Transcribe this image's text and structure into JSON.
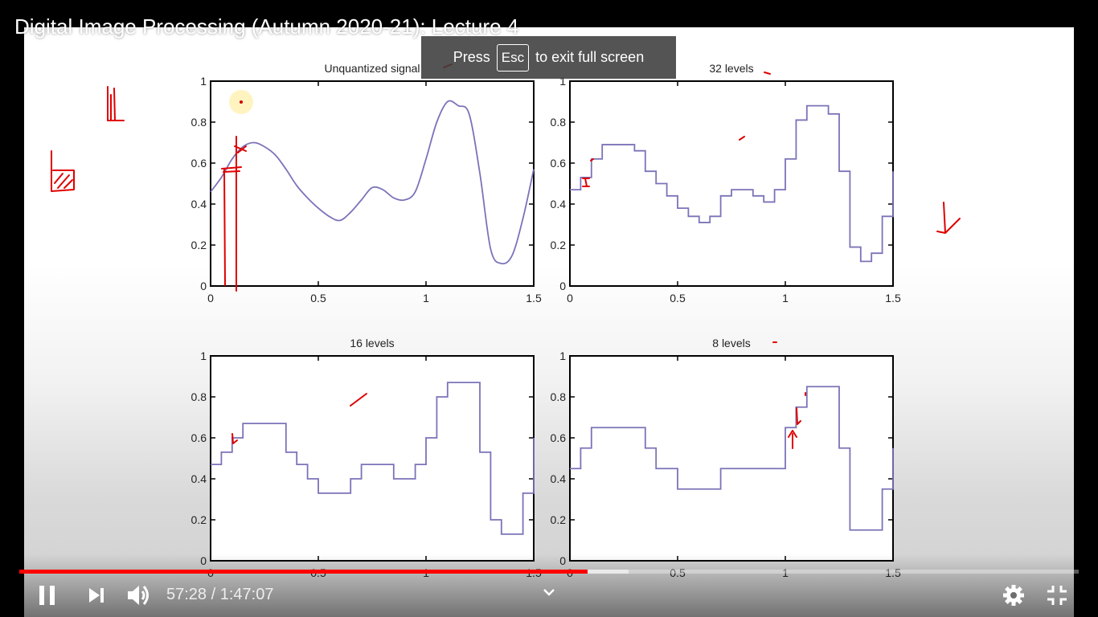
{
  "video": {
    "title": "Digital Image Processing (Autumn 2020-21): Lecture 4",
    "current_time": "57:28",
    "duration": "1:47:07",
    "time_separator": "/",
    "progress_played": 0.5365,
    "progress_buffered": 0.575
  },
  "fullscreen_toast": {
    "press": "Press",
    "key": "Esc",
    "message": "to exit full screen"
  },
  "controls": {
    "play_state": "playing",
    "icons": [
      "pause-icon",
      "next-icon",
      "volume-icon",
      "chevron-down-icon",
      "settings-icon",
      "exit-fullscreen-icon"
    ],
    "accent": "#ff0000"
  },
  "slide": {
    "plots": [
      {
        "title": "Unquantized signal",
        "type": "line"
      },
      {
        "title": "32 levels",
        "type": "line",
        "levels": 32
      },
      {
        "title": "16 levels",
        "type": "line",
        "levels": 16
      },
      {
        "title": "8 levels",
        "type": "line",
        "levels": 8
      }
    ],
    "x_ticks": [
      "0",
      "0.5",
      "1",
      "1.5"
    ],
    "y_ticks": [
      "0",
      "0.2",
      "0.4",
      "0.6",
      "0.8",
      "1"
    ],
    "xlim": [
      0,
      1.5
    ],
    "ylim": [
      0,
      1
    ],
    "line_color": "#7b73b8",
    "annotation_color": "#e00000"
  },
  "chart_data": [
    {
      "type": "line",
      "title": "Unquantized signal",
      "x": [
        0,
        0.05,
        0.1,
        0.15,
        0.2,
        0.25,
        0.3,
        0.35,
        0.4,
        0.45,
        0.5,
        0.55,
        0.6,
        0.65,
        0.7,
        0.75,
        0.8,
        0.85,
        0.9,
        0.95,
        1.0,
        1.05,
        1.1,
        1.15,
        1.2,
        1.25,
        1.3,
        1.35,
        1.4,
        1.45,
        1.5
      ],
      "y": [
        0.46,
        0.53,
        0.62,
        0.68,
        0.7,
        0.68,
        0.64,
        0.57,
        0.49,
        0.43,
        0.38,
        0.34,
        0.32,
        0.36,
        0.42,
        0.48,
        0.47,
        0.43,
        0.42,
        0.46,
        0.62,
        0.8,
        0.9,
        0.88,
        0.84,
        0.55,
        0.18,
        0.11,
        0.15,
        0.33,
        0.57
      ],
      "xlim": [
        0,
        1.5
      ],
      "ylim": [
        0,
        1
      ]
    },
    {
      "type": "line",
      "title": "32 levels",
      "x": [
        0,
        0.05,
        0.1,
        0.15,
        0.2,
        0.25,
        0.3,
        0.35,
        0.4,
        0.45,
        0.5,
        0.55,
        0.6,
        0.65,
        0.7,
        0.75,
        0.8,
        0.85,
        0.9,
        0.95,
        1.0,
        1.05,
        1.1,
        1.15,
        1.2,
        1.25,
        1.3,
        1.35,
        1.4,
        1.45,
        1.5
      ],
      "y": [
        0.47,
        0.53,
        0.62,
        0.69,
        0.69,
        0.69,
        0.66,
        0.56,
        0.5,
        0.44,
        0.38,
        0.34,
        0.31,
        0.34,
        0.44,
        0.47,
        0.47,
        0.44,
        0.41,
        0.47,
        0.62,
        0.81,
        0.88,
        0.88,
        0.84,
        0.56,
        0.19,
        0.12,
        0.16,
        0.34,
        0.56
      ],
      "xlim": [
        0,
        1.5
      ],
      "ylim": [
        0,
        1
      ]
    },
    {
      "type": "line",
      "title": "16 levels",
      "x": [
        0,
        0.05,
        0.1,
        0.15,
        0.2,
        0.25,
        0.3,
        0.35,
        0.4,
        0.45,
        0.5,
        0.55,
        0.6,
        0.65,
        0.7,
        0.75,
        0.8,
        0.85,
        0.9,
        0.95,
        1.0,
        1.05,
        1.1,
        1.15,
        1.2,
        1.25,
        1.3,
        1.35,
        1.4,
        1.45,
        1.5
      ],
      "y": [
        0.47,
        0.53,
        0.6,
        0.67,
        0.67,
        0.67,
        0.67,
        0.53,
        0.47,
        0.4,
        0.33,
        0.33,
        0.33,
        0.4,
        0.47,
        0.47,
        0.47,
        0.4,
        0.4,
        0.47,
        0.6,
        0.8,
        0.87,
        0.87,
        0.87,
        0.53,
        0.2,
        0.13,
        0.13,
        0.33,
        0.6
      ],
      "xlim": [
        0,
        1.5
      ],
      "ylim": [
        0,
        1
      ]
    },
    {
      "type": "line",
      "title": "8 levels",
      "x": [
        0,
        0.05,
        0.1,
        0.15,
        0.2,
        0.25,
        0.3,
        0.35,
        0.4,
        0.45,
        0.5,
        0.55,
        0.6,
        0.65,
        0.7,
        0.75,
        0.8,
        0.85,
        0.9,
        0.95,
        1.0,
        1.05,
        1.1,
        1.15,
        1.2,
        1.25,
        1.3,
        1.35,
        1.4,
        1.45,
        1.5
      ],
      "y": [
        0.45,
        0.55,
        0.65,
        0.65,
        0.65,
        0.65,
        0.65,
        0.55,
        0.45,
        0.45,
        0.35,
        0.35,
        0.35,
        0.35,
        0.45,
        0.45,
        0.45,
        0.45,
        0.45,
        0.45,
        0.65,
        0.75,
        0.85,
        0.85,
        0.85,
        0.55,
        0.15,
        0.15,
        0.15,
        0.35,
        0.55
      ],
      "xlim": [
        0,
        1.5
      ],
      "ylim": [
        0,
        1
      ]
    }
  ]
}
